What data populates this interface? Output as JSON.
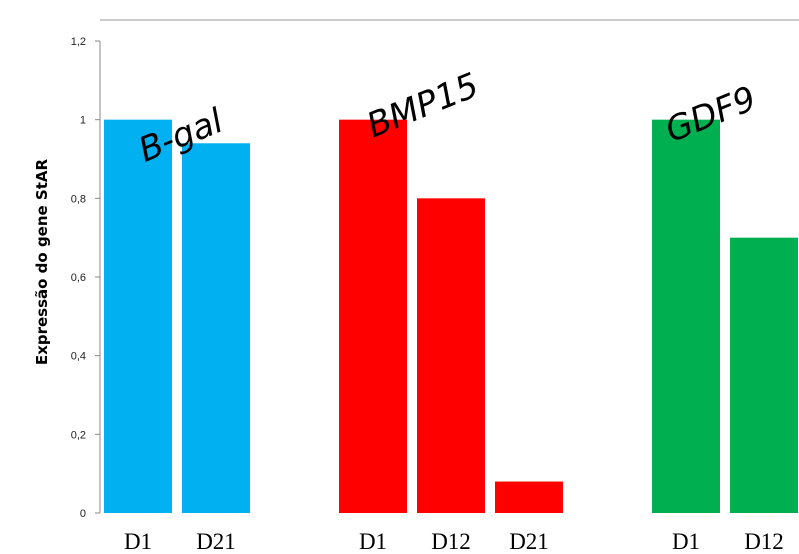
{
  "chart_data": {
    "type": "bar",
    "ylabel": "Expressão do gene StAR",
    "xlabel": "",
    "ylim": [
      0,
      1.2
    ],
    "yticks": [
      "0",
      "0,2",
      "0,4",
      "0,6",
      "0,8",
      "1",
      "1,2"
    ],
    "grid": false,
    "legend": "none",
    "groups": [
      {
        "name": "B-gal",
        "color": "#00b0f0",
        "categories": [
          "D1",
          "D21"
        ],
        "values": [
          1.0,
          0.94
        ]
      },
      {
        "name": "BMP15",
        "color": "#ff0000",
        "categories": [
          "D1",
          "D12",
          "D21"
        ],
        "values": [
          1.0,
          0.8,
          0.08
        ]
      },
      {
        "name": "GDF9",
        "color": "#00b050",
        "categories": [
          "D1",
          "D12"
        ],
        "values": [
          1.0,
          0.7
        ]
      }
    ]
  }
}
